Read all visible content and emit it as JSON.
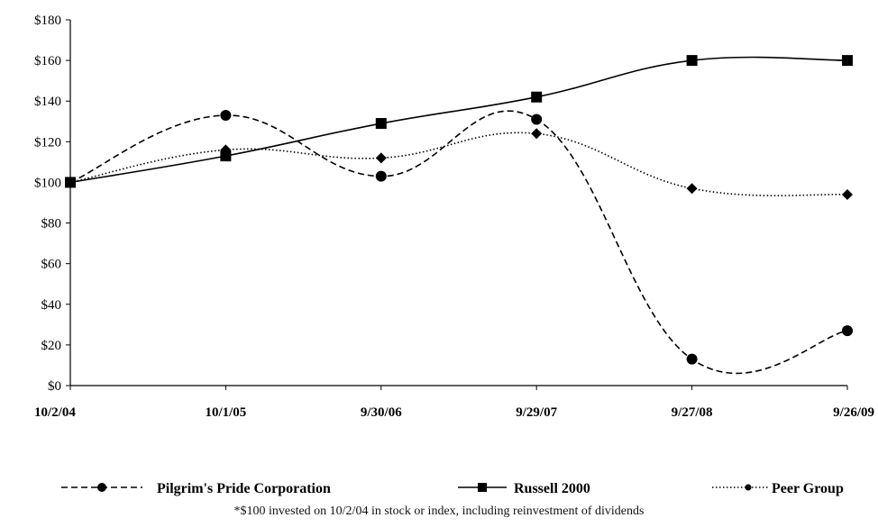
{
  "chart_data": {
    "type": "line",
    "categories": [
      "10/2/04",
      "10/1/05",
      "9/30/06",
      "9/29/07",
      "9/27/08",
      "9/26/09"
    ],
    "ylim": [
      0,
      180
    ],
    "yticks": [
      0,
      20,
      40,
      60,
      80,
      100,
      120,
      140,
      160,
      180
    ],
    "ytick_labels": [
      "$0",
      "$20",
      "$40",
      "$60",
      "$80",
      "$100",
      "$120",
      "$140",
      "$160",
      "$180"
    ],
    "grid": false,
    "legend_position": "bottom",
    "series": [
      {
        "name": "Pilgrim's Pride Corporation",
        "values": [
          100,
          133,
          103,
          131,
          13,
          27
        ],
        "line_style": "dashed",
        "marker": "circle",
        "color": "#000000"
      },
      {
        "name": "Russell 2000",
        "values": [
          100,
          113,
          129,
          142,
          160,
          160
        ],
        "line_style": "solid",
        "marker": "square",
        "color": "#000000"
      },
      {
        "name": "Peer Group",
        "values": [
          100,
          116,
          112,
          124,
          97,
          94
        ],
        "line_style": "dotted",
        "marker": "diamond",
        "color": "#000000"
      }
    ],
    "footnote": "*$100 invested on 10/2/04 in stock or index, including reinvestment of dividends"
  }
}
